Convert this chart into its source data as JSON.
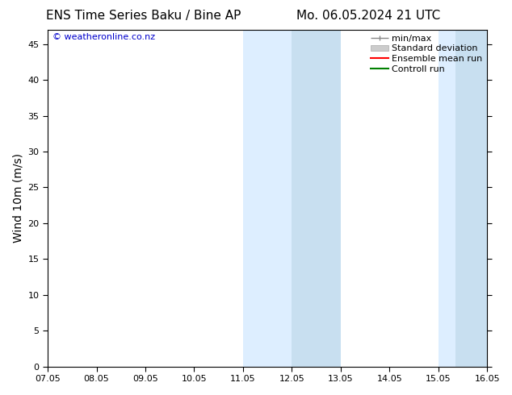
{
  "title_left": "ENS Time Series Baku / Bine AP",
  "title_right": "Mo. 06.05.2024 21 UTC",
  "ylabel": "Wind 10m (m/s)",
  "xlabel_ticks": [
    "07.05",
    "08.05",
    "09.05",
    "10.05",
    "11.05",
    "12.05",
    "13.05",
    "14.05",
    "15.05",
    "16.05"
  ],
  "xlim": [
    0,
    9
  ],
  "ylim": [
    0,
    47
  ],
  "yticks": [
    0,
    5,
    10,
    15,
    20,
    25,
    30,
    35,
    40,
    45
  ],
  "shaded_bands": [
    {
      "x_start": 4.0,
      "x_end": 6.0,
      "color": "#ddeeff"
    },
    {
      "x_start": 8.0,
      "x_end": 9.0,
      "color": "#ddeeff"
    }
  ],
  "shaded_bands_inner": [
    {
      "x_start": 5.0,
      "x_end": 6.0,
      "color": "#c8dff0"
    },
    {
      "x_start": 8.35,
      "x_end": 9.0,
      "color": "#c8dff0"
    }
  ],
  "legend_entries": [
    {
      "label": "min/max",
      "color": "#aaaaaa",
      "style": "minmax"
    },
    {
      "label": "Standard deviation",
      "color": "#cccccc",
      "style": "bar"
    },
    {
      "label": "Ensemble mean run",
      "color": "#ff0000",
      "style": "line"
    },
    {
      "label": "Controll run",
      "color": "#008000",
      "style": "line"
    }
  ],
  "watermark": "© weatheronline.co.nz",
  "watermark_color": "#0000cc",
  "background_color": "#ffffff",
  "plot_bg_color": "#ffffff",
  "tick_label_fontsize": 8,
  "axis_label_fontsize": 10,
  "title_fontsize": 11,
  "legend_fontsize": 8
}
